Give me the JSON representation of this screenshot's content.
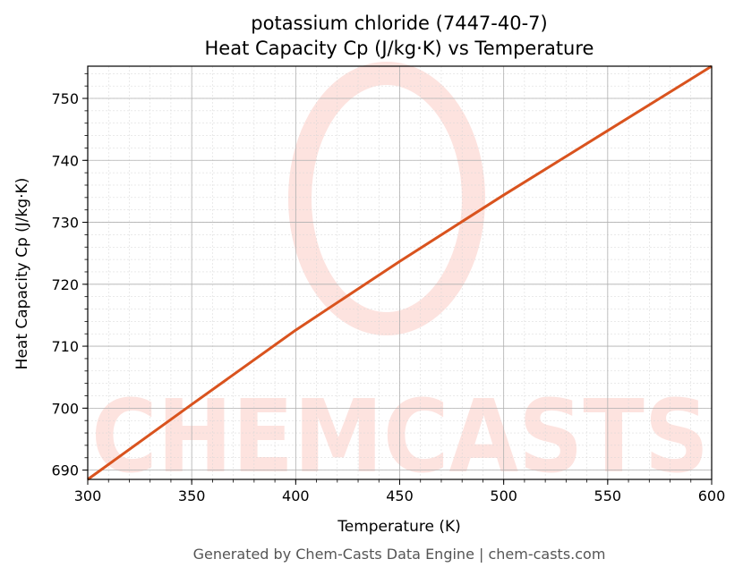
{
  "chart_data": {
    "type": "line",
    "title_line1": "potassium chloride (7447-40-7)",
    "title_line2": "Heat Capacity Cp (J/kg·K) vs Temperature",
    "xlabel": "Temperature (K)",
    "ylabel": "Heat Capacity Cp (J/kg·K)",
    "xlim": [
      300,
      600
    ],
    "ylim": [
      688.5,
      755.2
    ],
    "xticks": [
      300,
      350,
      400,
      450,
      500,
      550,
      600
    ],
    "yticks": [
      690,
      700,
      710,
      720,
      730,
      740,
      750
    ],
    "grid": true,
    "series": [
      {
        "color": "#d9531e",
        "x": [
          300,
          350,
          400,
          450,
          500,
          550,
          600
        ],
        "y": [
          688.5,
          700.6,
          712.6,
          723.7,
          734.4,
          744.8,
          755.2
        ]
      }
    ]
  },
  "watermark": {
    "text": "CHEMCASTS",
    "color": "#fde3df"
  },
  "footer": "Generated by Chem-Casts Data Engine | chem-casts.com"
}
